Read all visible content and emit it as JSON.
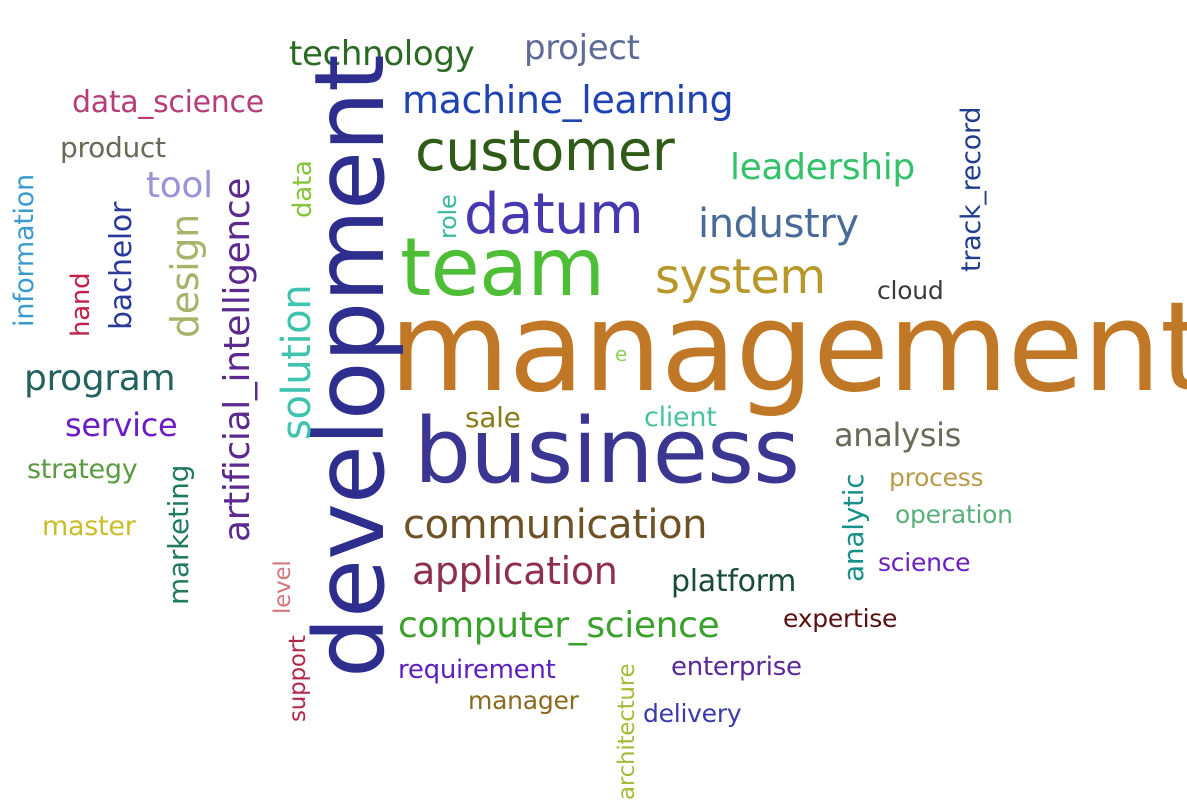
{
  "words": [
    {
      "text": "management",
      "color": "#c17826"
    },
    {
      "text": "development",
      "color": "#2e2e8e"
    },
    {
      "text": "business",
      "color": "#3a3692"
    },
    {
      "text": "team",
      "color": "#4ebe36"
    },
    {
      "text": "customer",
      "color": "#2f5a17"
    },
    {
      "text": "datum",
      "color": "#4538b0"
    },
    {
      "text": "system",
      "color": "#b8982b"
    },
    {
      "text": "machine_learning",
      "color": "#1f43b0"
    },
    {
      "text": "technology",
      "color": "#2a6a25"
    },
    {
      "text": "project",
      "color": "#5f6b96"
    },
    {
      "text": "leadership",
      "color": "#33c26a"
    },
    {
      "text": "industry",
      "color": "#4a6a98"
    },
    {
      "text": "track_record",
      "color": "#213e8c"
    },
    {
      "text": "cloud",
      "color": "#3b3b3b"
    },
    {
      "text": "data_science",
      "color": "#b43e7a"
    },
    {
      "text": "product",
      "color": "#6a6a5a"
    },
    {
      "text": "tool",
      "color": "#9b94d4"
    },
    {
      "text": "artificial_intelligence",
      "color": "#5a2a8e"
    },
    {
      "text": "data",
      "color": "#86c43a"
    },
    {
      "text": "role",
      "color": "#3db8a0"
    },
    {
      "text": "information",
      "color": "#3a9ad0"
    },
    {
      "text": "hand",
      "color": "#c2214a"
    },
    {
      "text": "bachelor",
      "color": "#2b3a9a"
    },
    {
      "text": "design",
      "color": "#a6b36a"
    },
    {
      "text": "solution",
      "color": "#3ec4ae"
    },
    {
      "text": "program",
      "color": "#23625e"
    },
    {
      "text": "service",
      "color": "#6a1fc2"
    },
    {
      "text": "strategy",
      "color": "#5a9a42"
    },
    {
      "text": "master",
      "color": "#c9bd2c"
    },
    {
      "text": "marketing",
      "color": "#1f7a60"
    },
    {
      "text": "sale",
      "color": "#8a7a1a"
    },
    {
      "text": "client",
      "color": "#4ac2a0"
    },
    {
      "text": "analysis",
      "color": "#6a6a5a"
    },
    {
      "text": "process",
      "color": "#b89a4a"
    },
    {
      "text": "operation",
      "color": "#5ab07a"
    },
    {
      "text": "analytic",
      "color": "#17908a"
    },
    {
      "text": "communication",
      "color": "#6e5226"
    },
    {
      "text": "application",
      "color": "#8e2f50"
    },
    {
      "text": "platform",
      "color": "#1a4a3a"
    },
    {
      "text": "science",
      "color": "#6a1fc2"
    },
    {
      "text": "expertise",
      "color": "#5a1010"
    },
    {
      "text": "computer_science",
      "color": "#3aa22c"
    },
    {
      "text": "level",
      "color": "#d2787e"
    },
    {
      "text": "support",
      "color": "#b0284a"
    },
    {
      "text": "requirement",
      "color": "#5f1fbe"
    },
    {
      "text": "manager",
      "color": "#8a6a20"
    },
    {
      "text": "architecture",
      "color": "#a8b83a"
    },
    {
      "text": "enterprise",
      "color": "#5a2a9a"
    },
    {
      "text": "delivery",
      "color": "#3a3aa8"
    },
    {
      "text": "e",
      "color": "#8ecf5a"
    }
  ]
}
